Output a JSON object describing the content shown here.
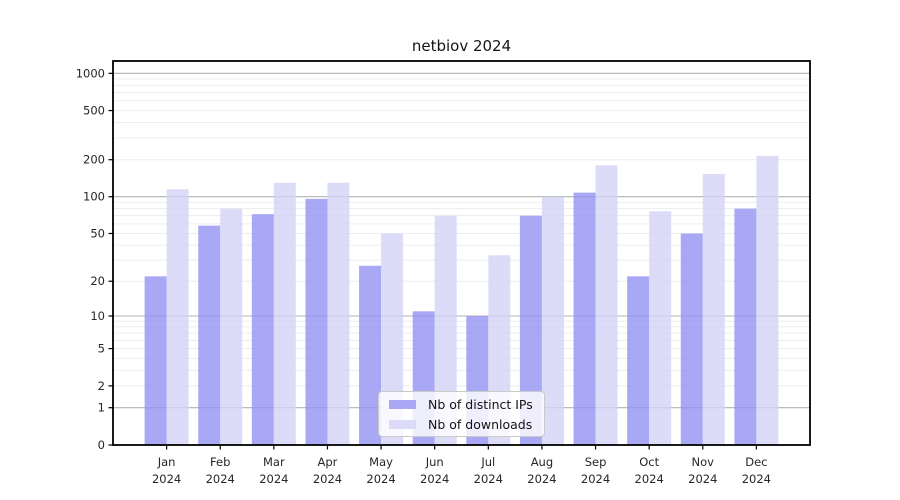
{
  "chart_data": {
    "type": "bar",
    "title": "netbiov 2024",
    "categories": [
      "Jan",
      "Feb",
      "Mar",
      "Apr",
      "May",
      "Jun",
      "Jul",
      "Aug",
      "Sep",
      "Oct",
      "Nov",
      "Dec"
    ],
    "category_year": "2024",
    "series": [
      {
        "name": "Nb of distinct IPs",
        "color": "#9292f3",
        "values": [
          22,
          58,
          72,
          96,
          27,
          11,
          10,
          70,
          108,
          22,
          50,
          80
        ]
      },
      {
        "name": "Nb of downloads",
        "color": "#d3d3f8",
        "values": [
          115,
          80,
          130,
          130,
          50,
          70,
          33,
          100,
          180,
          76,
          153,
          215
        ]
      }
    ],
    "yticks": [
      0,
      1,
      2,
      5,
      10,
      20,
      50,
      100,
      200,
      500,
      1000
    ],
    "xlabel": "",
    "ylabel": "",
    "yscale": "log10(1+x)",
    "ylim": [
      0,
      1258
    ],
    "grid": "horizontal, log minors light + decade majors dark",
    "legend_position": "lower center inside plot",
    "bar_opacity": 0.8,
    "axis_color": "#000000",
    "tick_label_color": "#262626",
    "major_grid_color": "#b3b3b3",
    "minor_grid_color": "#ededed"
  }
}
